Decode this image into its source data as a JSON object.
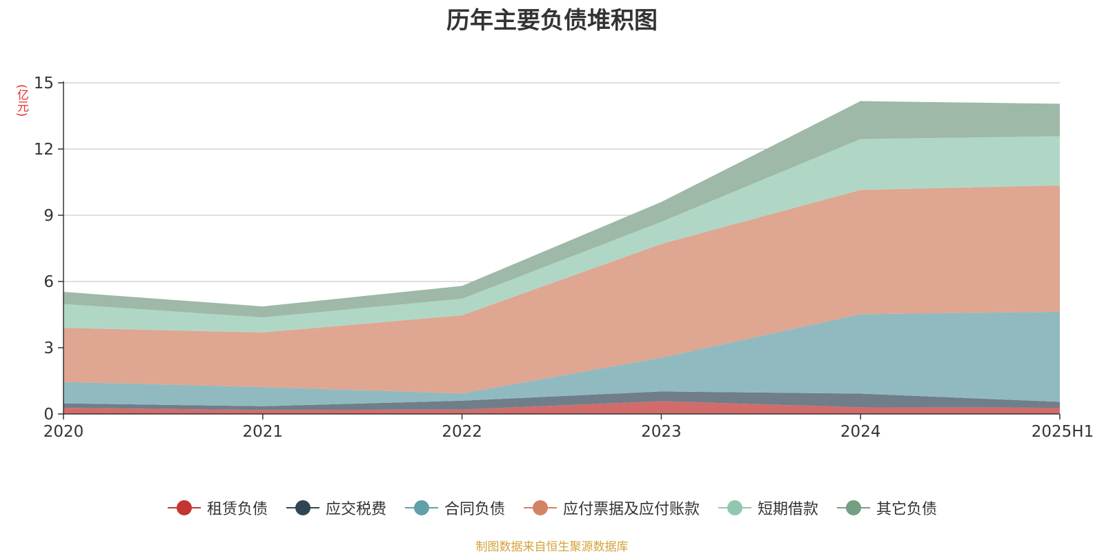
{
  "chart_data": {
    "type": "area",
    "stacked": true,
    "title": "历年主要负债堆积图",
    "unit_label": "(亿元)",
    "categories": [
      "2020",
      "2021",
      "2022",
      "2023",
      "2024",
      "2025H1"
    ],
    "ylim": [
      0,
      15
    ],
    "yticks": [
      0,
      3,
      6,
      9,
      12,
      15
    ],
    "grid": true,
    "legend_position": "bottom",
    "series": [
      {
        "name": "租赁负债",
        "color": "#c23531",
        "fill": "#d26c6b",
        "values": [
          0.28,
          0.18,
          0.2,
          0.58,
          0.3,
          0.28
        ]
      },
      {
        "name": "应交税费",
        "color": "#2f4554",
        "fill": "#6f7e89",
        "values": [
          0.2,
          0.17,
          0.4,
          0.44,
          0.62,
          0.27
        ]
      },
      {
        "name": "合同负债",
        "color": "#61a0a8",
        "fill": "#90bac0",
        "values": [
          0.97,
          0.87,
          0.33,
          1.53,
          3.6,
          4.08
        ]
      },
      {
        "name": "应付票据及应付账款",
        "color": "#d48265",
        "fill": "#dfa691",
        "values": [
          2.45,
          2.47,
          3.54,
          5.15,
          5.63,
          5.72
        ]
      },
      {
        "name": "短期借款",
        "color": "#91c7ae",
        "fill": "#b0d7c5",
        "values": [
          1.08,
          0.68,
          0.75,
          1.0,
          2.3,
          2.23
        ]
      },
      {
        "name": "其它负债",
        "color": "#749f83",
        "fill": "#9eb9a7",
        "values": [
          0.55,
          0.5,
          0.58,
          0.9,
          1.72,
          1.47
        ]
      }
    ]
  },
  "source_note": "制图数据来自恒生聚源数据库"
}
